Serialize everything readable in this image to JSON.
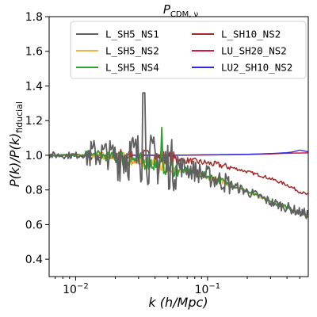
{
  "chart_data": {
    "type": "line",
    "title_main": "P",
    "title_sub": "CDM, ν",
    "xlabel_pre": "k (",
    "xlabel_italic": "h/Mpc",
    "xlabel_post": ")",
    "ylabel_main": "P(k)/P(k)",
    "ylabel_sub": "fiducial",
    "xscale": "log",
    "xlim": [
      0.0063,
      0.58
    ],
    "ylim": [
      0.3,
      1.8
    ],
    "yticks": [
      0.4,
      0.6,
      0.8,
      1.0,
      1.2,
      1.4,
      1.6,
      1.8
    ],
    "ytick_labels": [
      "0.4",
      "0.6",
      "0.8",
      "1.0",
      "1.2",
      "1.4",
      "1.6",
      "1.8"
    ],
    "xticks": [
      0.01,
      0.1
    ],
    "xtick_labels": [
      {
        "base": "10",
        "exp": "−2"
      },
      {
        "base": "10",
        "exp": "−1"
      }
    ],
    "legend_placement": "top-right",
    "grid": false,
    "series": [
      {
        "name": "L_SH5_NS1",
        "color": "#606060",
        "width": 1.8,
        "noise": 0.5,
        "x": [
          0.0063,
          0.01,
          0.015,
          0.02,
          0.025,
          0.03,
          0.04,
          0.05,
          0.06,
          0.08,
          0.1,
          0.13,
          0.16,
          0.2,
          0.25,
          0.3,
          0.4,
          0.5,
          0.58
        ],
        "y": [
          1.0,
          1.0,
          1.01,
          1.0,
          1.0,
          0.99,
          0.97,
          0.95,
          0.94,
          0.91,
          0.88,
          0.85,
          0.82,
          0.79,
          0.76,
          0.73,
          0.7,
          0.67,
          0.66
        ]
      },
      {
        "name": "L_SH5_NS2",
        "color": "#f5b342",
        "width": 1.5,
        "noise": 0.12,
        "x": [
          0.0063,
          0.015,
          0.02,
          0.025,
          0.03,
          0.04,
          0.05,
          0.06,
          0.08,
          0.1,
          0.13,
          0.16,
          0.2,
          0.25,
          0.3,
          0.4,
          0.5,
          0.58
        ],
        "y": [
          1.0,
          1.0,
          0.99,
          0.98,
          0.97,
          0.95,
          0.93,
          0.92,
          0.9,
          0.88,
          0.85,
          0.82,
          0.79,
          0.76,
          0.73,
          0.7,
          0.67,
          0.65
        ]
      },
      {
        "name": "L_SH5_NS4",
        "color": "#2ca02c",
        "width": 1.8,
        "noise": 0.16,
        "x": [
          0.0063,
          0.015,
          0.02,
          0.025,
          0.03,
          0.04,
          0.05,
          0.06,
          0.08,
          0.1,
          0.13,
          0.16,
          0.2,
          0.25,
          0.3,
          0.4,
          0.5,
          0.58
        ],
        "y": [
          1.0,
          1.0,
          0.99,
          0.98,
          0.97,
          0.95,
          0.93,
          0.92,
          0.9,
          0.88,
          0.85,
          0.82,
          0.79,
          0.76,
          0.73,
          0.7,
          0.67,
          0.65
        ]
      },
      {
        "name": "L_SH10_NS2",
        "color": "#a52a2a",
        "width": 1.5,
        "noise": 0.15,
        "x": [
          0.0063,
          0.02,
          0.04,
          0.06,
          0.08,
          0.1,
          0.13,
          0.16,
          0.2,
          0.25,
          0.3,
          0.4,
          0.5,
          0.58
        ],
        "y": [
          1.0,
          0.995,
          0.99,
          0.975,
          0.965,
          0.955,
          0.94,
          0.925,
          0.905,
          0.885,
          0.865,
          0.83,
          0.79,
          0.77
        ]
      },
      {
        "name": "LU_SH20_NS2",
        "color": "#dc143c",
        "width": 1.5,
        "noise": 0.0,
        "x": [
          0.0063,
          0.02,
          0.05,
          0.1,
          0.2,
          0.3,
          0.4,
          0.5,
          0.58
        ],
        "y": [
          1.0,
          1.0,
          1.0,
          1.002,
          1.005,
          1.008,
          1.012,
          1.013,
          1.014
        ]
      },
      {
        "name": "LU2_SH10_NS2",
        "color": "#2a2ae0",
        "width": 1.3,
        "noise": 0.0,
        "x": [
          0.0063,
          0.02,
          0.05,
          0.1,
          0.2,
          0.3,
          0.4,
          0.45,
          0.5,
          0.58
        ],
        "y": [
          1.0,
          1.0,
          1.0,
          1.003,
          1.006,
          1.01,
          1.015,
          1.02,
          1.03,
          1.02
        ]
      }
    ]
  }
}
